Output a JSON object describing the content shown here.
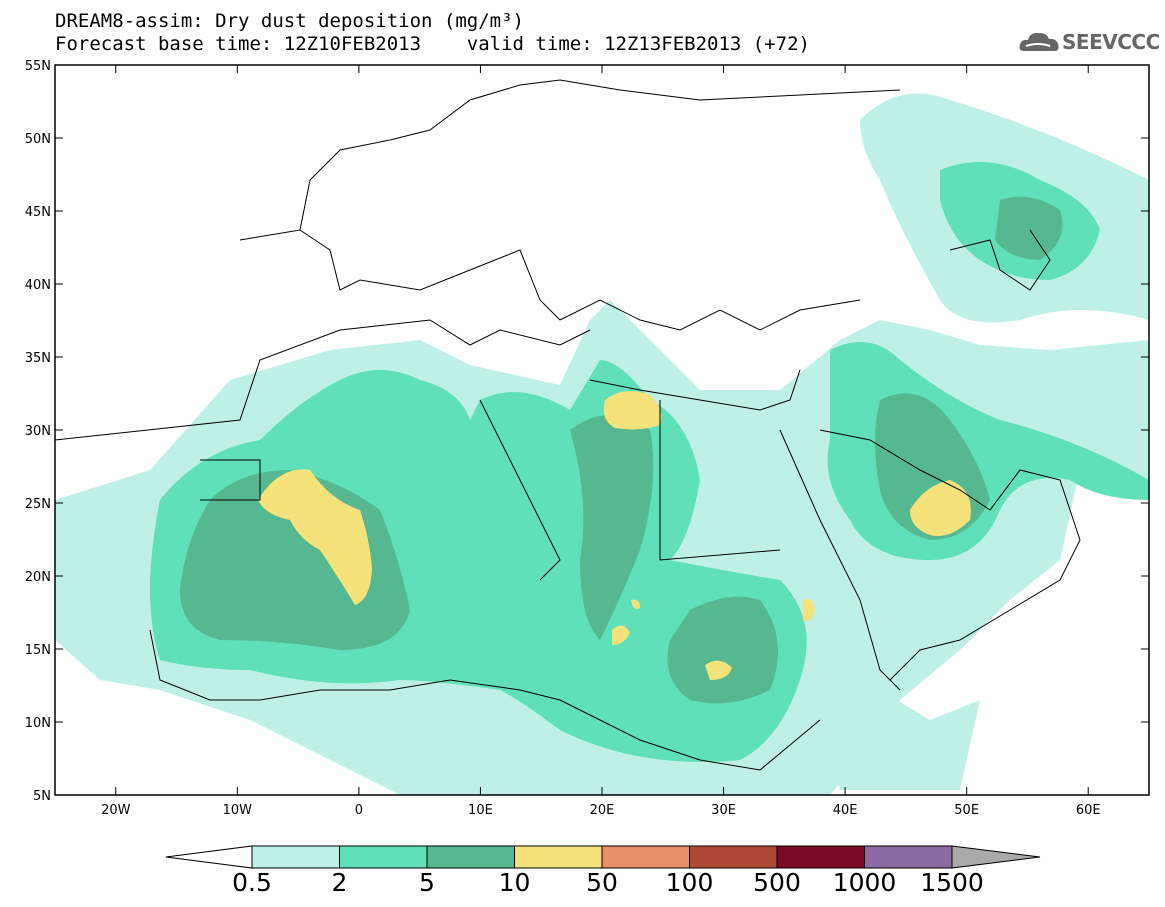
{
  "title": {
    "line1": "DREAM8-assim: Dry dust deposition (mg/m³)",
    "line2": "Forecast base time: 12Z10FEB2013    valid time: 12Z13FEB2013 (+72)"
  },
  "logo": {
    "text": "SEEVCCC",
    "icon": "cloud-icon"
  },
  "map": {
    "lon_range": [
      -25,
      65
    ],
    "lat_range": [
      5,
      55
    ],
    "lat_ticks": [
      "5N",
      "10N",
      "15N",
      "20N",
      "25N",
      "30N",
      "35N",
      "40N",
      "45N",
      "50N",
      "55N"
    ],
    "lon_ticks": [
      "20W",
      "10W",
      "0",
      "10E",
      "20E",
      "30E",
      "40E",
      "50E",
      "60E"
    ]
  },
  "colorbar": {
    "thresholds": [
      "0.5",
      "2",
      "5",
      "10",
      "50",
      "100",
      "500",
      "1000",
      "1500"
    ],
    "colors": [
      "#ffffff",
      "#bff0e8",
      "#5fe0b8",
      "#55b890",
      "#f5e27a",
      "#e8906a",
      "#b04838",
      "#7a0a28",
      "#8a6aa0",
      "#aaaaaa"
    ]
  }
}
